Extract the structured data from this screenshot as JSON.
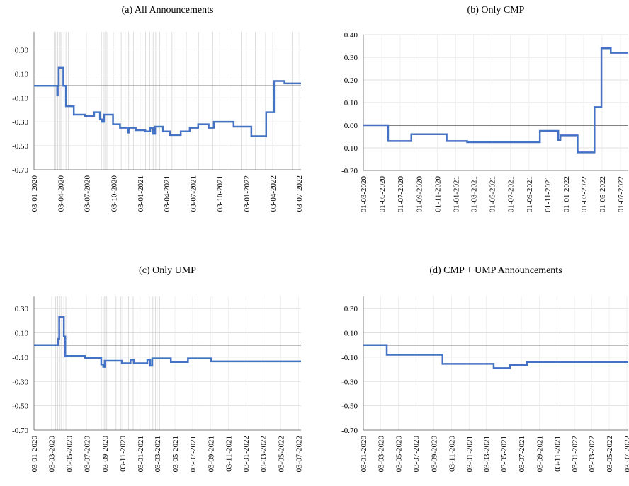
{
  "chart_data": [
    {
      "type": "line",
      "title": "(a) All Announcements",
      "color": "#4472c4",
      "grid": true,
      "zero_line": true,
      "xlim": [
        "03-01-2020",
        "10-07-2022"
      ],
      "xticks": [
        "03-01-2020",
        "03-04-2020",
        "03-07-2020",
        "03-10-2020",
        "03-01-2021",
        "03-04-2021",
        "03-07-2021",
        "03-10-2021",
        "03-01-2022",
        "03-04-2022",
        "03-07-2022"
      ],
      "ylim": [
        -0.7,
        0.45
      ],
      "yticks": [
        {
          "value": -0.7,
          "label": "-0.70"
        },
        {
          "value": -0.5,
          "label": "-0.50"
        },
        {
          "value": -0.3,
          "label": "-0.30"
        },
        {
          "value": -0.1,
          "label": "-0.10"
        },
        {
          "value": 0.1,
          "label": "0.10"
        },
        {
          "value": 0.3,
          "label": "0.30"
        }
      ],
      "vlines": [
        "12-03-2020",
        "18-03-2020",
        "25-03-2020",
        "30-03-2020",
        "02-04-2020",
        "07-04-2020",
        "15-04-2020",
        "22-04-2020",
        "30-04-2020",
        "22-08-2020",
        "29-08-2020",
        "03-09-2020",
        "10-09-2020",
        "29-10-2020",
        "12-11-2020",
        "24-11-2020",
        "10-12-2020",
        "21-01-2021",
        "04-02-2021",
        "16-02-2021",
        "25-02-2021",
        "11-03-2021",
        "22-04-2021",
        "29-04-2021",
        "10-06-2021",
        "22-07-2021",
        "09-09-2021",
        "28-10-2021",
        "16-12-2021",
        "03-02-2022",
        "10-03-2022",
        "14-04-2022",
        "09-06-2022"
      ],
      "x": [
        "03-01-2020",
        "23-03-2020",
        "23-03-2020",
        "25-03-2020",
        "25-03-2020",
        "28-03-2020",
        "28-03-2020",
        "13-04-2020",
        "13-04-2020",
        "22-04-2020",
        "22-04-2020",
        "19-05-2020",
        "19-05-2020",
        "26-06-2020",
        "26-06-2020",
        "28-07-2020",
        "28-07-2020",
        "17-08-2020",
        "17-08-2020",
        "24-08-2020",
        "24-08-2020",
        "31-08-2020",
        "31-08-2020",
        "01-10-2020",
        "01-10-2020",
        "25-10-2020",
        "25-10-2020",
        "21-11-2020",
        "21-11-2020",
        "24-11-2020",
        "24-11-2020",
        "18-12-2020",
        "18-12-2020",
        "20-01-2021",
        "20-01-2021",
        "06-02-2021",
        "06-02-2021",
        "16-02-2021",
        "16-02-2021",
        "23-02-2021",
        "23-02-2021",
        "22-03-2021",
        "22-03-2021",
        "15-04-2021",
        "15-04-2021",
        "22-05-2021",
        "22-05-2021",
        "22-06-2021",
        "22-06-2021",
        "21-07-2021",
        "21-07-2021",
        "26-08-2021",
        "26-08-2021",
        "13-09-2021",
        "13-09-2021",
        "20-11-2021",
        "20-11-2021",
        "20-01-2022",
        "20-01-2022",
        "12-03-2022",
        "12-03-2022",
        "08-04-2022",
        "08-04-2022",
        "14-05-2022",
        "14-05-2022",
        "10-07-2022"
      ],
      "values": [
        0,
        0,
        -0.08,
        -0.08,
        0,
        0,
        0.15,
        0.15,
        0,
        0,
        -0.17,
        -0.17,
        -0.24,
        -0.24,
        -0.25,
        -0.25,
        -0.22,
        -0.22,
        -0.28,
        -0.28,
        -0.3,
        -0.3,
        -0.24,
        -0.24,
        -0.32,
        -0.32,
        -0.35,
        -0.35,
        -0.39,
        -0.39,
        -0.35,
        -0.35,
        -0.37,
        -0.37,
        -0.38,
        -0.38,
        -0.35,
        -0.35,
        -0.4,
        -0.4,
        -0.34,
        -0.34,
        -0.38,
        -0.38,
        -0.41,
        -0.41,
        -0.38,
        -0.38,
        -0.35,
        -0.35,
        -0.32,
        -0.32,
        -0.35,
        -0.35,
        -0.3,
        -0.3,
        -0.34,
        -0.34,
        -0.42,
        -0.42,
        -0.22,
        -0.22,
        0.04,
        0.04,
        0.02,
        0.02
      ]
    },
    {
      "type": "line",
      "title": "(b) Only CMP",
      "color": "#4472c4",
      "grid": true,
      "zero_line": true,
      "xlim": [
        "01-03-2020",
        "27-07-2022"
      ],
      "xticks": [
        "01-03-2020",
        "01-05-2020",
        "01-07-2020",
        "01-09-2020",
        "01-11-2020",
        "01-01-2021",
        "01-03-2021",
        "01-05-2021",
        "01-07-2021",
        "01-09-2021",
        "01-11-2021",
        "01-01-2022",
        "01-03-2022",
        "01-05-2022",
        "01-07-2022"
      ],
      "ylim": [
        -0.2,
        0.4
      ],
      "yticks": [
        {
          "value": -0.2,
          "label": "-0.20"
        },
        {
          "value": -0.1,
          "label": "-0.10"
        },
        {
          "value": 0,
          "label": "0.00"
        },
        {
          "value": 0.1,
          "label": "0.10"
        },
        {
          "value": 0.2,
          "label": "0.20"
        },
        {
          "value": 0.3,
          "label": "0.30"
        },
        {
          "value": 0.4,
          "label": "0.40"
        }
      ],
      "x": [
        "01-03-2020",
        "22-05-2020",
        "22-05-2020",
        "07-08-2020",
        "07-08-2020",
        "02-12-2020",
        "02-12-2020",
        "08-02-2021",
        "08-02-2021",
        "07-10-2021",
        "07-10-2021",
        "07-12-2021",
        "07-12-2021",
        "14-12-2021",
        "14-12-2021",
        "09-02-2022",
        "09-02-2022",
        "06-04-2022",
        "06-04-2022",
        "29-04-2022",
        "29-04-2022",
        "30-05-2022",
        "30-05-2022",
        "27-07-2022"
      ],
      "values": [
        0,
        0,
        -0.07,
        -0.07,
        -0.04,
        -0.04,
        -0.07,
        -0.07,
        -0.075,
        -0.075,
        -0.025,
        -0.025,
        -0.065,
        -0.065,
        -0.045,
        -0.045,
        -0.12,
        -0.12,
        0.08,
        0.08,
        0.34,
        0.34,
        0.32,
        0.32
      ]
    },
    {
      "type": "line",
      "title": "(c) Only UMP",
      "color": "#4472c4",
      "grid": true,
      "zero_line": true,
      "xlim": [
        "03-01-2020",
        "12-07-2022"
      ],
      "xticks": [
        "03-01-2020",
        "03-03-2020",
        "03-05-2020",
        "03-07-2020",
        "03-09-2020",
        "03-11-2020",
        "03-01-2021",
        "03-03-2021",
        "03-05-2021",
        "03-07-2021",
        "03-09-2021",
        "03-11-2021",
        "03-01-2022",
        "03-03-2022",
        "03-05-2022",
        "03-07-2022"
      ],
      "ylim": [
        -0.7,
        0.4
      ],
      "yticks": [
        {
          "value": -0.7,
          "label": "-0.70"
        },
        {
          "value": -0.5,
          "label": "-0.50"
        },
        {
          "value": -0.3,
          "label": "-0.30"
        },
        {
          "value": -0.1,
          "label": "-0.10"
        },
        {
          "value": 0.1,
          "label": "0.10"
        },
        {
          "value": 0.3,
          "label": "0.30"
        }
      ],
      "vlines": [
        "18-03-2020",
        "25-03-2020",
        "30-03-2020",
        "02-04-2020",
        "07-04-2020",
        "15-04-2020",
        "22-04-2020",
        "22-08-2020",
        "29-08-2020",
        "03-09-2020",
        "10-09-2020",
        "12-10-2020",
        "29-10-2020",
        "12-11-2020",
        "24-11-2020",
        "10-12-2020",
        "04-02-2021",
        "16-02-2021",
        "25-02-2021",
        "11-03-2021",
        "22-07-2021",
        "09-09-2021"
      ],
      "x": [
        "03-01-2020",
        "26-03-2020",
        "26-03-2020",
        "30-03-2020",
        "30-03-2020",
        "15-04-2020",
        "15-04-2020",
        "20-04-2020",
        "20-04-2020",
        "27-06-2020",
        "27-06-2020",
        "22-08-2020",
        "22-08-2020",
        "29-08-2020",
        "29-08-2020",
        "03-09-2020",
        "03-09-2020",
        "01-11-2020",
        "01-11-2020",
        "01-12-2020",
        "01-12-2020",
        "12-12-2020",
        "12-12-2020",
        "28-01-2021",
        "28-01-2021",
        "07-02-2021",
        "07-02-2021",
        "14-02-2021",
        "14-02-2021",
        "19-04-2021",
        "19-04-2021",
        "17-06-2021",
        "17-06-2021",
        "05-09-2021",
        "05-09-2021",
        "12-07-2022"
      ],
      "values": [
        0,
        0,
        0.05,
        0.05,
        0.23,
        0.23,
        0.07,
        0.07,
        -0.09,
        -0.09,
        -0.105,
        -0.105,
        -0.16,
        -0.16,
        -0.18,
        -0.18,
        -0.13,
        -0.13,
        -0.15,
        -0.15,
        -0.12,
        -0.12,
        -0.15,
        -0.15,
        -0.12,
        -0.12,
        -0.17,
        -0.17,
        -0.11,
        -0.11,
        -0.14,
        -0.14,
        -0.11,
        -0.11,
        -0.135,
        -0.135
      ]
    },
    {
      "type": "line",
      "title": "(d) CMP + UMP Announcements",
      "color": "#4472c4",
      "grid": true,
      "zero_line": true,
      "xlim": [
        "03-01-2020",
        "08-07-2022"
      ],
      "xticks": [
        "03-01-2020",
        "03-03-2020",
        "03-05-2020",
        "03-07-2020",
        "03-09-2020",
        "03-11-2020",
        "03-01-2021",
        "03-03-2021",
        "03-05-2021",
        "03-07-2021",
        "03-09-2021",
        "03-11-2021",
        "03-01-2022",
        "03-03-2022",
        "03-05-2022",
        "03-07-2022"
      ],
      "ylim": [
        -0.7,
        0.4
      ],
      "yticks": [
        {
          "value": -0.7,
          "label": "-0.70"
        },
        {
          "value": -0.5,
          "label": "-0.50"
        },
        {
          "value": -0.3,
          "label": "-0.30"
        },
        {
          "value": -0.1,
          "label": "-0.10"
        },
        {
          "value": 0.1,
          "label": "0.10"
        },
        {
          "value": 0.3,
          "label": "0.30"
        }
      ],
      "x": [
        "03-01-2020",
        "24-03-2020",
        "24-03-2020",
        "03-10-2020",
        "03-10-2020",
        "29-03-2021",
        "29-03-2021",
        "24-05-2021",
        "24-05-2021",
        "22-07-2021",
        "22-07-2021",
        "08-07-2022"
      ],
      "values": [
        0,
        0,
        -0.08,
        -0.08,
        -0.155,
        -0.155,
        -0.19,
        -0.19,
        -0.165,
        -0.165,
        -0.14,
        -0.14
      ]
    }
  ]
}
